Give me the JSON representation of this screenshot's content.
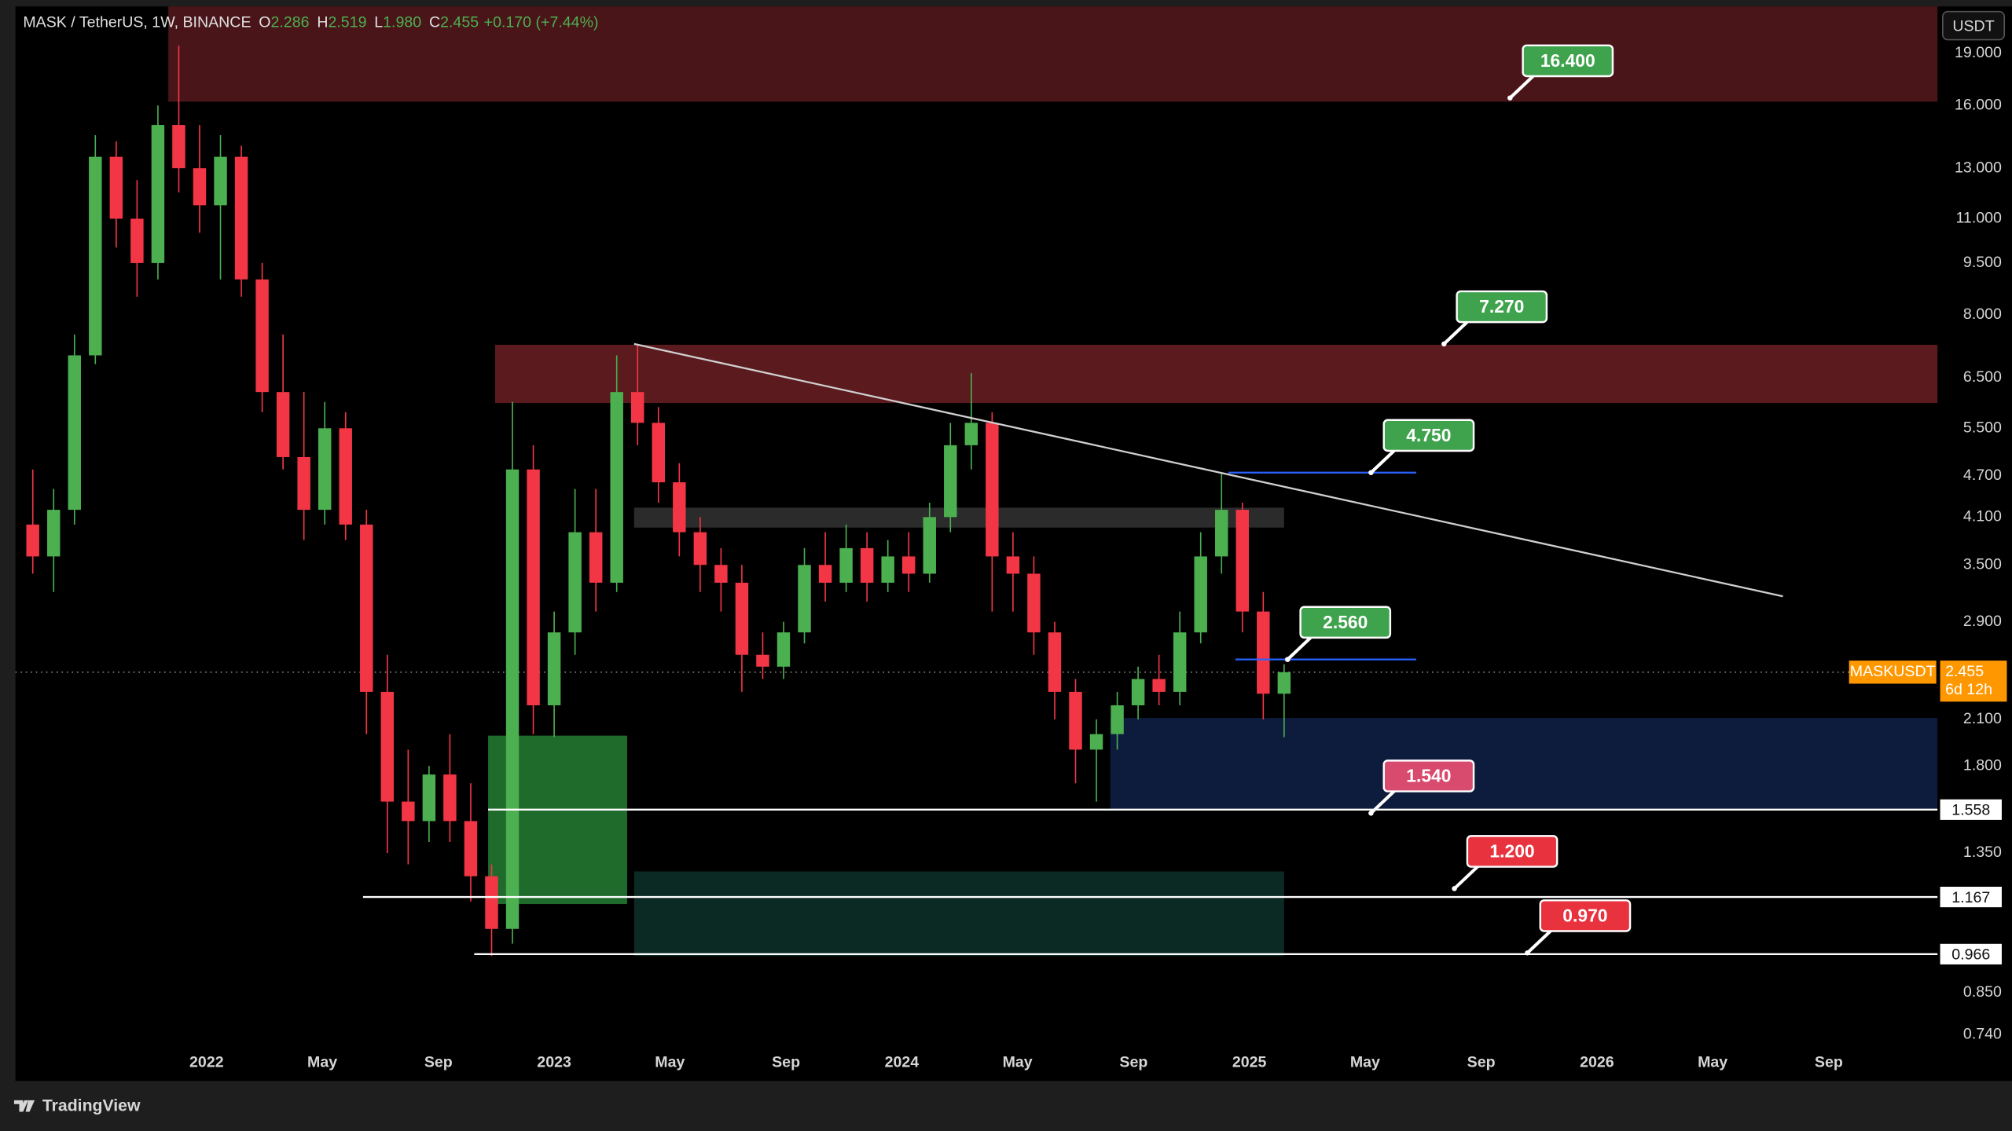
{
  "chart_data": {
    "type": "candlestick",
    "title": "MASK / TetherUS, 1W, BINANCE",
    "ohlc": [
      {
        "key": "O",
        "value": "2.286"
      },
      {
        "key": "H",
        "value": "2.519"
      },
      {
        "key": "L",
        "value": "1.980"
      },
      {
        "key": "C",
        "value": "2.455"
      }
    ],
    "change": "+0.170 (+7.44%)",
    "currency": "USDT",
    "brand": "TradingView",
    "log_y": true,
    "grid": false,
    "up_color": "#4caf50",
    "down_color": "#f23645",
    "xlim": [
      2021.45,
      2026.98
    ],
    "xticks": [
      {
        "value": 2022,
        "label": "2022"
      },
      {
        "value": 2022.333,
        "label": "May"
      },
      {
        "value": 2022.667,
        "label": "Sep"
      },
      {
        "value": 2023,
        "label": "2023"
      },
      {
        "value": 2023.333,
        "label": "May"
      },
      {
        "value": 2023.667,
        "label": "Sep"
      },
      {
        "value": 2024,
        "label": "2024"
      },
      {
        "value": 2024.333,
        "label": "May"
      },
      {
        "value": 2024.667,
        "label": "Sep"
      },
      {
        "value": 2025,
        "label": "2025"
      },
      {
        "value": 2025.333,
        "label": "May"
      },
      {
        "value": 2025.667,
        "label": "Sep"
      },
      {
        "value": 2026,
        "label": "2026"
      },
      {
        "value": 2026.333,
        "label": "May"
      },
      {
        "value": 2026.667,
        "label": "Sep"
      }
    ],
    "ylim": [
      0.635,
      22.2
    ],
    "yticks": [
      {
        "value": 19,
        "label": "19.000"
      },
      {
        "value": 16,
        "label": "16.000"
      },
      {
        "value": 13,
        "label": "13.000"
      },
      {
        "value": 11,
        "label": "11.000"
      },
      {
        "value": 9.5,
        "label": "9.500"
      },
      {
        "value": 8,
        "label": "8.000"
      },
      {
        "value": 6.5,
        "label": "6.500"
      },
      {
        "value": 5.5,
        "label": "5.500"
      },
      {
        "value": 4.7,
        "label": "4.700"
      },
      {
        "value": 4.1,
        "label": "4.100"
      },
      {
        "value": 3.5,
        "label": "3.500"
      },
      {
        "value": 2.9,
        "label": "2.900"
      },
      {
        "value": 2.1,
        "label": "2.100"
      },
      {
        "value": 1.8,
        "label": "1.800"
      },
      {
        "value": 1.35,
        "label": "1.350"
      },
      {
        "value": 0.85,
        "label": "0.850"
      },
      {
        "value": 0.74,
        "label": "0.740"
      }
    ],
    "x": [
      2021.5,
      2021.56,
      2021.62,
      2021.68,
      2021.74,
      2021.8,
      2021.86,
      2021.92,
      2021.98,
      2022.04,
      2022.1,
      2022.16,
      2022.22,
      2022.28,
      2022.34,
      2022.4,
      2022.46,
      2022.52,
      2022.58,
      2022.64,
      2022.7,
      2022.76,
      2022.82,
      2022.88,
      2022.94,
      2023.0,
      2023.06,
      2023.12,
      2023.18,
      2023.24,
      2023.3,
      2023.36,
      2023.42,
      2023.48,
      2023.54,
      2023.6,
      2023.66,
      2023.72,
      2023.78,
      2023.84,
      2023.9,
      2023.96,
      2024.02,
      2024.08,
      2024.14,
      2024.2,
      2024.26,
      2024.32,
      2024.38,
      2024.44,
      2024.5,
      2024.56,
      2024.62,
      2024.68,
      2024.74,
      2024.8,
      2024.86,
      2024.92,
      2024.98,
      2025.04,
      2025.1
    ],
    "open": [
      4.0,
      3.6,
      4.2,
      7.0,
      13.5,
      11.0,
      9.5,
      15.0,
      13.0,
      11.5,
      13.5,
      9.0,
      6.2,
      5.0,
      4.2,
      5.5,
      4.0,
      2.3,
      1.6,
      1.5,
      1.75,
      1.5,
      1.25,
      1.05,
      4.8,
      2.2,
      2.8,
      3.9,
      3.3,
      6.2,
      5.6,
      4.6,
      3.9,
      3.5,
      3.3,
      2.6,
      2.5,
      2.8,
      3.5,
      3.3,
      3.7,
      3.3,
      3.6,
      3.4,
      4.1,
      5.2,
      5.6,
      3.6,
      3.4,
      2.8,
      2.3,
      1.9,
      2.0,
      2.2,
      2.4,
      2.3,
      2.8,
      3.6,
      4.2,
      3.0,
      2.286
    ],
    "high": [
      4.8,
      4.5,
      7.5,
      14.5,
      14.2,
      12.5,
      16.0,
      19.5,
      15.0,
      14.5,
      14.0,
      9.5,
      7.5,
      6.2,
      6.0,
      5.8,
      4.2,
      2.6,
      1.9,
      1.8,
      2.0,
      1.7,
      1.3,
      6.0,
      5.2,
      3.0,
      4.5,
      4.5,
      7.0,
      7.27,
      5.9,
      4.9,
      4.1,
      3.7,
      3.5,
      2.8,
      2.9,
      3.7,
      3.9,
      4.0,
      3.9,
      3.8,
      3.9,
      4.3,
      5.6,
      6.6,
      5.8,
      3.9,
      3.6,
      2.9,
      2.4,
      2.1,
      2.3,
      2.5,
      2.6,
      3.0,
      3.9,
      4.75,
      4.3,
      3.2,
      2.519
    ],
    "low": [
      3.4,
      3.2,
      4.0,
      6.8,
      10.0,
      8.5,
      9.0,
      12.0,
      10.5,
      9.0,
      8.5,
      5.8,
      4.8,
      3.8,
      4.0,
      3.8,
      2.0,
      1.35,
      1.3,
      1.4,
      1.4,
      1.15,
      0.96,
      1.0,
      2.0,
      1.98,
      2.6,
      3.0,
      3.2,
      5.2,
      4.3,
      3.6,
      3.2,
      3.0,
      2.3,
      2.4,
      2.4,
      2.7,
      3.1,
      3.2,
      3.1,
      3.2,
      3.2,
      3.3,
      3.9,
      4.8,
      3.0,
      3.0,
      2.6,
      2.1,
      1.7,
      1.6,
      1.9,
      2.1,
      2.2,
      2.2,
      2.7,
      3.4,
      2.8,
      2.1,
      1.98
    ],
    "close": [
      3.6,
      4.2,
      7.0,
      13.5,
      11.0,
      9.5,
      15.0,
      13.0,
      11.5,
      13.5,
      9.0,
      6.2,
      5.0,
      4.2,
      5.5,
      4.0,
      2.3,
      1.6,
      1.5,
      1.75,
      1.5,
      1.25,
      1.05,
      4.8,
      2.2,
      2.8,
      3.9,
      3.3,
      6.2,
      5.6,
      4.6,
      3.9,
      3.5,
      3.3,
      2.6,
      2.5,
      2.8,
      3.5,
      3.3,
      3.7,
      3.3,
      3.6,
      3.4,
      4.1,
      5.2,
      5.6,
      3.6,
      3.4,
      2.8,
      2.3,
      1.9,
      2.0,
      2.2,
      2.4,
      2.3,
      2.8,
      3.6,
      4.2,
      3.0,
      2.286,
      2.455
    ],
    "zones": [
      {
        "x": [
          2021.89,
          2026.98
        ],
        "y": [
          16.2,
          25
        ],
        "color": "#4a1519"
      },
      {
        "x": [
          2022.83,
          2026.98
        ],
        "y": [
          5.98,
          7.25
        ],
        "color": "#5a1a1e"
      },
      {
        "x": [
          2023.23,
          2025.1
        ],
        "y": [
          3.96,
          4.23
        ],
        "color": "#2b2b2b"
      },
      {
        "x": [
          2022.81,
          2023.21
        ],
        "y": [
          1.14,
          1.99
        ],
        "color": "#1e6b2c"
      },
      {
        "x": [
          2023.23,
          2025.1
        ],
        "y": [
          0.96,
          1.27
        ],
        "color": "#0b2a24"
      },
      {
        "x": [
          2024.6,
          2026.98
        ],
        "y": [
          1.56,
          2.11
        ],
        "color": "#0d1b3d"
      }
    ],
    "lines": [
      {
        "x": [
          2023.23,
          2026.535
        ],
        "y": [
          7.27,
          3.155
        ],
        "color": "#cfcfcf"
      },
      {
        "x": [
          2024.94,
          2025.48
        ],
        "y": [
          4.75,
          4.75
        ],
        "color": "#2962ff"
      },
      {
        "x": [
          2024.96,
          2025.48
        ],
        "y": [
          2.56,
          2.56
        ],
        "color": "#2962ff"
      },
      {
        "x": [
          2022.81,
          2026.98
        ],
        "y": [
          1.558,
          1.558
        ],
        "color": "#ffffff"
      },
      {
        "x": [
          2022.45,
          2026.98
        ],
        "y": [
          1.167,
          1.167
        ],
        "color": "#ffffff"
      },
      {
        "x": [
          2022.77,
          2026.98
        ],
        "y": [
          0.966,
          0.966
        ],
        "color": "#ffffff"
      }
    ],
    "callouts": [
      {
        "value": 16.4,
        "label": "16.400",
        "x": 2025.75,
        "color": "#3fa34d"
      },
      {
        "value": 7.27,
        "label": "7.270",
        "x": 2025.56,
        "color": "#3fa34d"
      },
      {
        "value": 4.75,
        "label": "4.750",
        "x": 2025.35,
        "color": "#3fa34d"
      },
      {
        "value": 2.56,
        "label": "2.560",
        "x": 2025.11,
        "color": "#3fa34d"
      },
      {
        "value": 1.54,
        "label": "1.540",
        "x": 2025.35,
        "color": "#d84a6e"
      },
      {
        "value": 1.2,
        "label": "1.200",
        "x": 2025.59,
        "color": "#e8333f"
      },
      {
        "value": 0.97,
        "label": "0.970",
        "x": 2025.8,
        "color": "#e8333f"
      }
    ],
    "price_labels": [
      {
        "value": 1.558,
        "label": "1.558"
      },
      {
        "value": 1.167,
        "label": "1.167"
      },
      {
        "value": 0.966,
        "label": "0.966"
      }
    ],
    "last_price": {
      "name": "MASKUSDT",
      "value": 2.455,
      "label": "2.455",
      "countdown": "6d 12h",
      "color": "#ff9800"
    }
  }
}
